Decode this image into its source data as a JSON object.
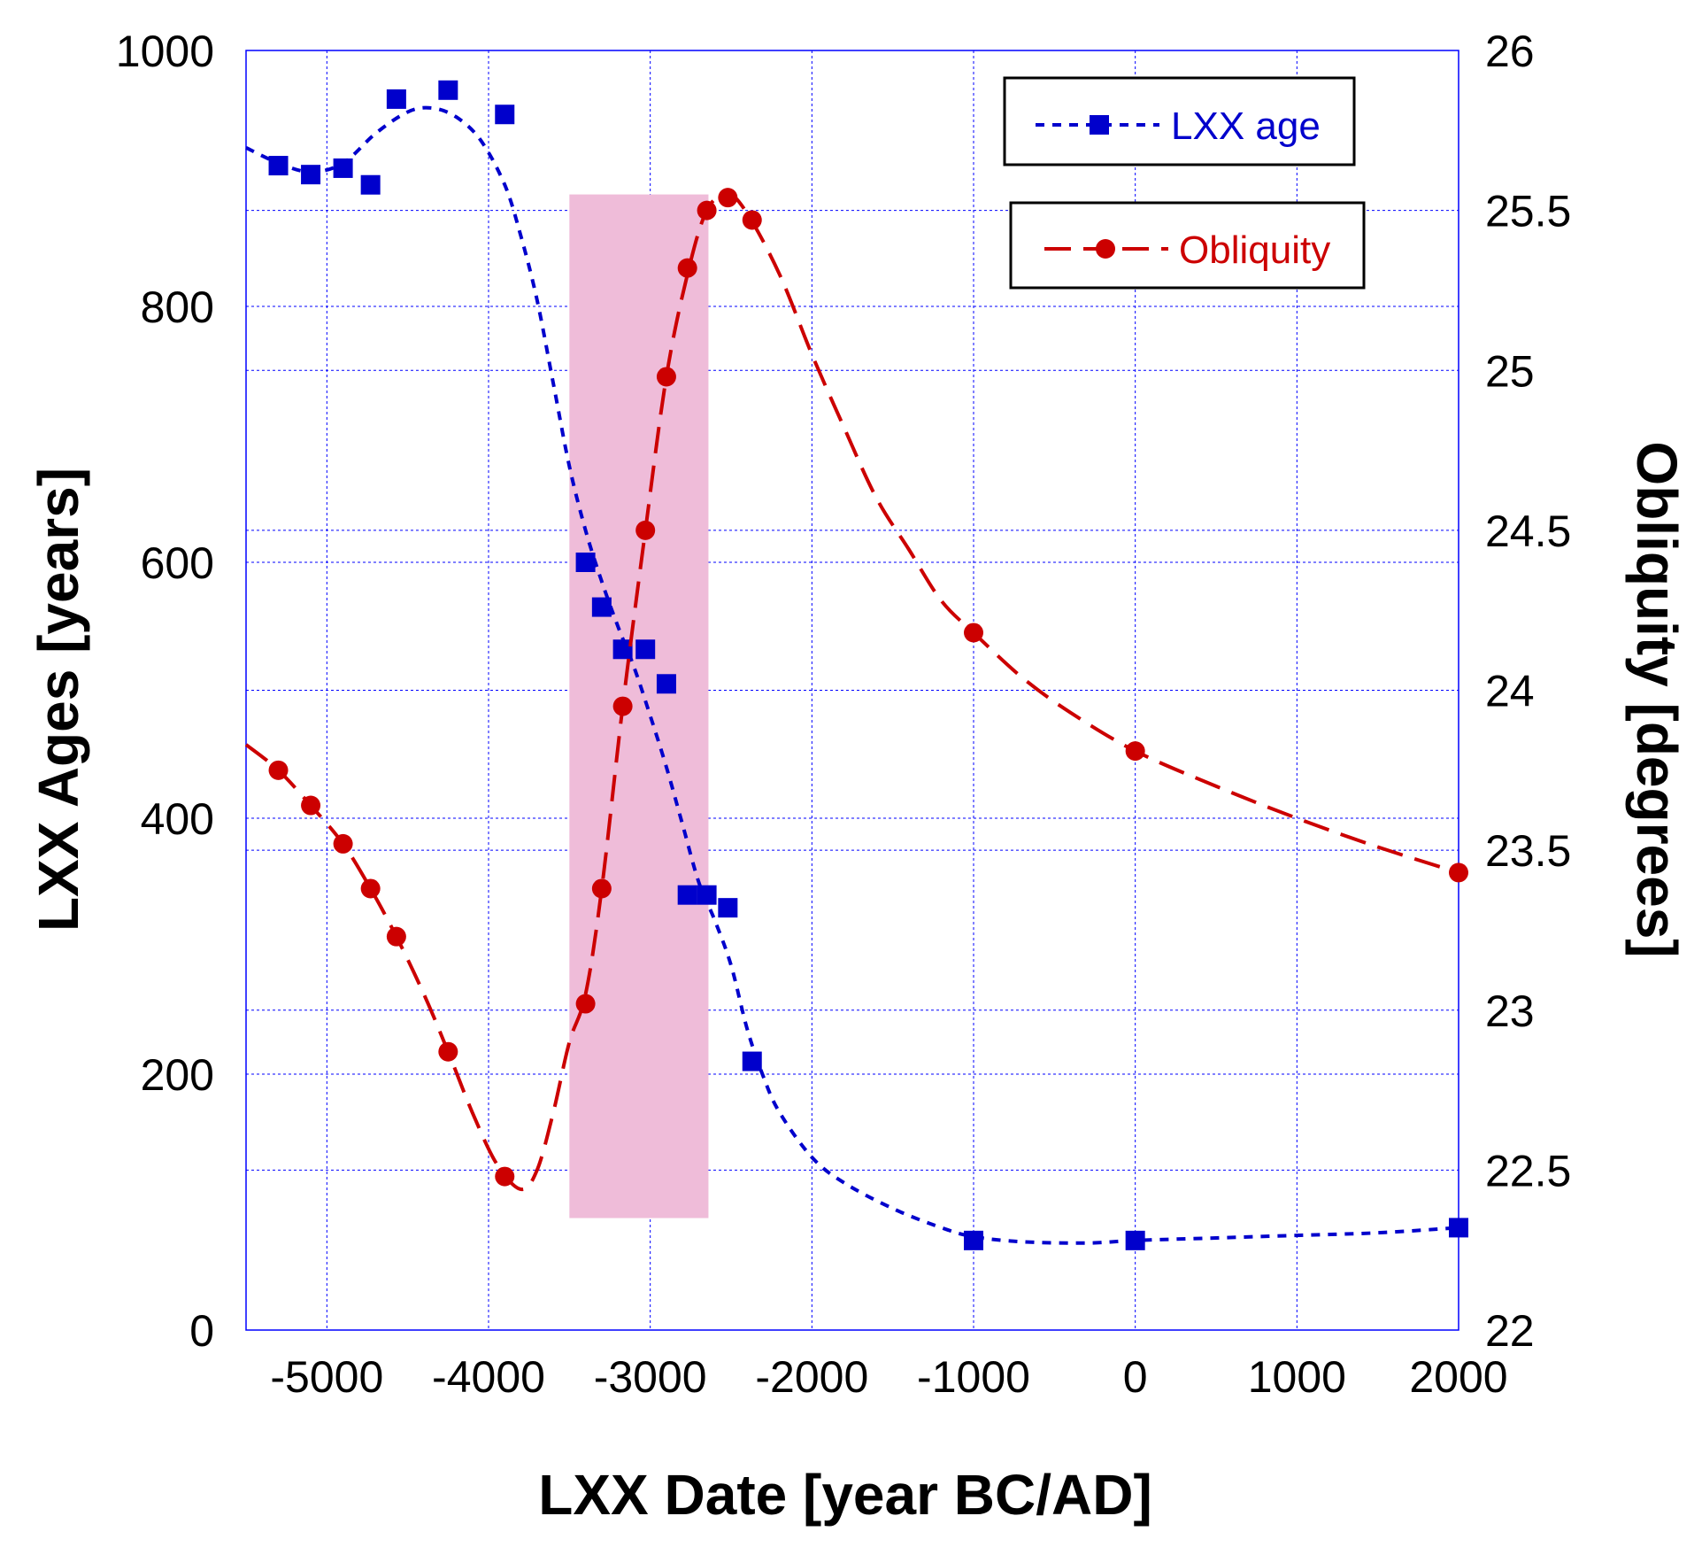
{
  "chart_data": {
    "type": "line",
    "xlabel": "LXX Date [year BC/AD]",
    "ylabel_left": "LXX Ages [years]",
    "ylabel_right": "Obliquity [degrees]",
    "xlim": [
      -5500,
      2000
    ],
    "ylim_left": [
      0,
      1000
    ],
    "ylim_right": [
      22,
      26
    ],
    "x_ticks": [
      -5000,
      -4000,
      -3000,
      -2000,
      -1000,
      0,
      1000,
      2000
    ],
    "y_left_ticks": [
      0,
      200,
      400,
      600,
      800,
      1000
    ],
    "y_right_ticks": [
      "22",
      "22.5",
      "23",
      "23.5",
      "24",
      "24.5",
      "25",
      "25.5",
      "26"
    ],
    "grid": true,
    "legend_position": "top-right",
    "shaded_region": {
      "x": [
        -3500,
        -2640
      ],
      "y_right": [
        22.35,
        25.55
      ],
      "color": "#efbcd9"
    },
    "series": [
      {
        "name": "LXX age",
        "axis": "left",
        "color": "#0000cc",
        "marker": "square",
        "points": [
          {
            "x": -5300,
            "y": 910
          },
          {
            "x": -5100,
            "y": 903
          },
          {
            "x": -4900,
            "y": 908
          },
          {
            "x": -4730,
            "y": 895
          },
          {
            "x": -4570,
            "y": 962
          },
          {
            "x": -4250,
            "y": 969
          },
          {
            "x": -3900,
            "y": 950
          },
          {
            "x": -3400,
            "y": 600
          },
          {
            "x": -3300,
            "y": 565
          },
          {
            "x": -3170,
            "y": 532
          },
          {
            "x": -3030,
            "y": 532
          },
          {
            "x": -2900,
            "y": 505
          },
          {
            "x": -2770,
            "y": 340
          },
          {
            "x": -2650,
            "y": 340
          },
          {
            "x": -2520,
            "y": 330
          },
          {
            "x": -2370,
            "y": 210
          },
          {
            "x": -1000,
            "y": 70
          },
          {
            "x": 0,
            "y": 70
          },
          {
            "x": 2000,
            "y": 80
          }
        ],
        "curve": [
          {
            "x": -5500,
            "y": 924
          },
          {
            "x": -5300,
            "y": 912
          },
          {
            "x": -5100,
            "y": 905
          },
          {
            "x": -4900,
            "y": 912
          },
          {
            "x": -4700,
            "y": 935
          },
          {
            "x": -4500,
            "y": 952
          },
          {
            "x": -4350,
            "y": 955
          },
          {
            "x": -4200,
            "y": 948
          },
          {
            "x": -4050,
            "y": 930
          },
          {
            "x": -3900,
            "y": 895
          },
          {
            "x": -3800,
            "y": 855
          },
          {
            "x": -3700,
            "y": 805
          },
          {
            "x": -3600,
            "y": 740
          },
          {
            "x": -3500,
            "y": 675
          },
          {
            "x": -3400,
            "y": 625
          },
          {
            "x": -3300,
            "y": 585
          },
          {
            "x": -3200,
            "y": 550
          },
          {
            "x": -3100,
            "y": 518
          },
          {
            "x": -3000,
            "y": 480
          },
          {
            "x": -2900,
            "y": 440
          },
          {
            "x": -2800,
            "y": 395
          },
          {
            "x": -2700,
            "y": 350
          },
          {
            "x": -2600,
            "y": 320
          },
          {
            "x": -2500,
            "y": 285
          },
          {
            "x": -2400,
            "y": 235
          },
          {
            "x": -2300,
            "y": 198
          },
          {
            "x": -2200,
            "y": 170
          },
          {
            "x": -2000,
            "y": 135
          },
          {
            "x": -1800,
            "y": 115
          },
          {
            "x": -1500,
            "y": 95
          },
          {
            "x": -1200,
            "y": 80
          },
          {
            "x": -1000,
            "y": 73
          },
          {
            "x": -700,
            "y": 69
          },
          {
            "x": -300,
            "y": 68
          },
          {
            "x": 0,
            "y": 70
          },
          {
            "x": 500,
            "y": 72
          },
          {
            "x": 1000,
            "y": 74
          },
          {
            "x": 1500,
            "y": 76
          },
          {
            "x": 2000,
            "y": 80
          }
        ]
      },
      {
        "name": "Obliquity",
        "axis": "right",
        "color": "#cc0000",
        "marker": "circle",
        "points": [
          {
            "x": -5300,
            "y": 23.75
          },
          {
            "x": -5100,
            "y": 23.64
          },
          {
            "x": -4900,
            "y": 23.52
          },
          {
            "x": -4730,
            "y": 23.38
          },
          {
            "x": -4570,
            "y": 23.23
          },
          {
            "x": -4250,
            "y": 22.87
          },
          {
            "x": -3900,
            "y": 22.48
          },
          {
            "x": -3400,
            "y": 23.02
          },
          {
            "x": -3300,
            "y": 23.38
          },
          {
            "x": -3170,
            "y": 23.95
          },
          {
            "x": -3030,
            "y": 24.5
          },
          {
            "x": -2900,
            "y": 24.98
          },
          {
            "x": -2770,
            "y": 25.32
          },
          {
            "x": -2650,
            "y": 25.5
          },
          {
            "x": -2520,
            "y": 25.54
          },
          {
            "x": -2370,
            "y": 25.47
          },
          {
            "x": -1000,
            "y": 24.18
          },
          {
            "x": 0,
            "y": 23.81
          },
          {
            "x": 2000,
            "y": 23.43
          }
        ],
        "curve": [
          {
            "x": -5500,
            "y": 23.83
          },
          {
            "x": -5300,
            "y": 23.75
          },
          {
            "x": -5100,
            "y": 23.64
          },
          {
            "x": -4900,
            "y": 23.52
          },
          {
            "x": -4730,
            "y": 23.38
          },
          {
            "x": -4570,
            "y": 23.23
          },
          {
            "x": -4400,
            "y": 23.05
          },
          {
            "x": -4250,
            "y": 22.87
          },
          {
            "x": -4100,
            "y": 22.68
          },
          {
            "x": -3950,
            "y": 22.52
          },
          {
            "x": -3800,
            "y": 22.44
          },
          {
            "x": -3700,
            "y": 22.5
          },
          {
            "x": -3600,
            "y": 22.68
          },
          {
            "x": -3500,
            "y": 22.9
          },
          {
            "x": -3400,
            "y": 23.05
          },
          {
            "x": -3300,
            "y": 23.38
          },
          {
            "x": -3170,
            "y": 23.95
          },
          {
            "x": -3030,
            "y": 24.5
          },
          {
            "x": -2900,
            "y": 24.98
          },
          {
            "x": -2770,
            "y": 25.3
          },
          {
            "x": -2650,
            "y": 25.5
          },
          {
            "x": -2520,
            "y": 25.55
          },
          {
            "x": -2400,
            "y": 25.49
          },
          {
            "x": -2200,
            "y": 25.3
          },
          {
            "x": -2000,
            "y": 25.05
          },
          {
            "x": -1800,
            "y": 24.82
          },
          {
            "x": -1600,
            "y": 24.6
          },
          {
            "x": -1400,
            "y": 24.44
          },
          {
            "x": -1200,
            "y": 24.28
          },
          {
            "x": -1000,
            "y": 24.18
          },
          {
            "x": -700,
            "y": 24.04
          },
          {
            "x": -400,
            "y": 23.93
          },
          {
            "x": 0,
            "y": 23.81
          },
          {
            "x": 500,
            "y": 23.7
          },
          {
            "x": 1000,
            "y": 23.6
          },
          {
            "x": 1500,
            "y": 23.51
          },
          {
            "x": 2000,
            "y": 23.43
          }
        ]
      }
    ]
  }
}
